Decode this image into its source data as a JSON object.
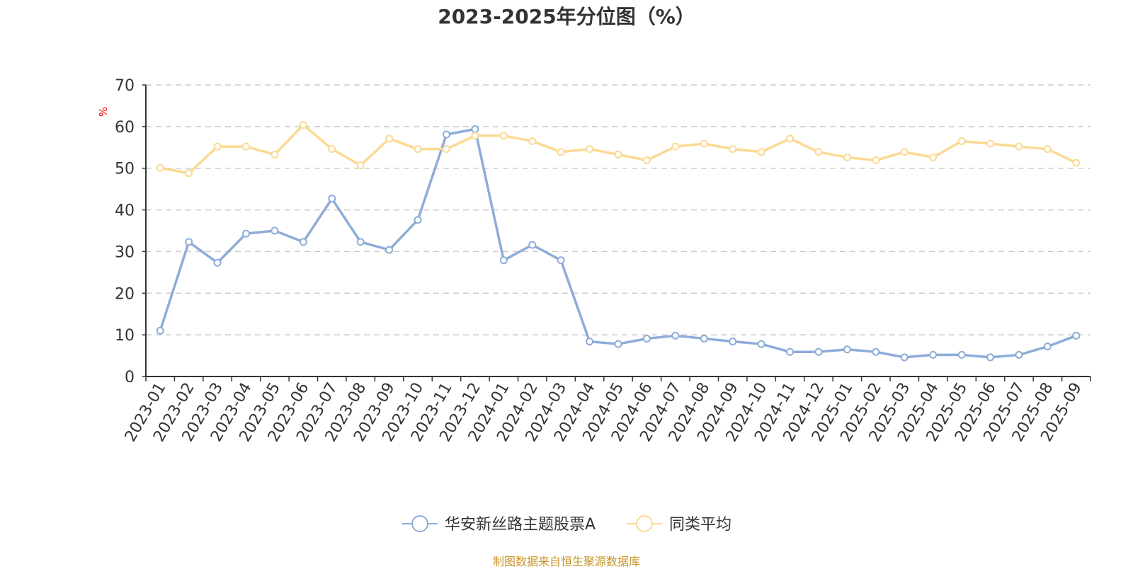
{
  "chart_data": {
    "type": "line",
    "title": "2023-2025年分位图（%）",
    "ylabel": "%",
    "xlabel": "",
    "ylim": [
      0,
      70
    ],
    "yticks": [
      0,
      10,
      20,
      30,
      40,
      50,
      60,
      70
    ],
    "grid": "horizontal-dashed",
    "legend_position": "bottom",
    "categories": [
      "2023-01",
      "2023-02",
      "2023-03",
      "2023-04",
      "2023-05",
      "2023-06",
      "2023-07",
      "2023-08",
      "2023-09",
      "2023-10",
      "2023-11",
      "2023-12",
      "2024-01",
      "2024-02",
      "2024-03",
      "2024-04",
      "2024-05",
      "2024-06",
      "2024-07",
      "2024-08",
      "2024-09",
      "2024-10",
      "2024-11",
      "2024-12",
      "2025-01",
      "2025-02",
      "2025-03",
      "2025-04",
      "2025-05",
      "2025-06",
      "2025-07",
      "2025-08",
      "2025-09"
    ],
    "series": [
      {
        "name": "华安新丝路主题股票A",
        "color": "#8eacd8",
        "values": [
          11.0,
          32.3,
          27.3,
          34.3,
          35.0,
          32.3,
          42.7,
          32.3,
          30.4,
          37.6,
          58.1,
          59.4,
          27.9,
          31.6,
          27.9,
          8.4,
          7.8,
          9.1,
          9.8,
          9.1,
          8.4,
          7.8,
          5.9,
          5.9,
          6.5,
          5.9,
          4.6,
          5.2,
          5.2,
          4.6,
          5.2,
          7.2,
          9.8
        ]
      },
      {
        "name": "同类平均",
        "color": "#fcd993",
        "values": [
          50.1,
          48.8,
          55.2,
          55.2,
          53.3,
          60.4,
          54.6,
          50.7,
          57.1,
          54.6,
          54.6,
          57.8,
          57.8,
          56.5,
          53.9,
          54.6,
          53.3,
          51.9,
          55.2,
          55.9,
          54.6,
          53.9,
          57.1,
          53.9,
          52.6,
          51.9,
          53.9,
          52.6,
          56.5,
          55.9,
          55.2,
          54.6,
          51.3
        ]
      }
    ]
  },
  "source": "制图数据来自恒生聚源数据库"
}
